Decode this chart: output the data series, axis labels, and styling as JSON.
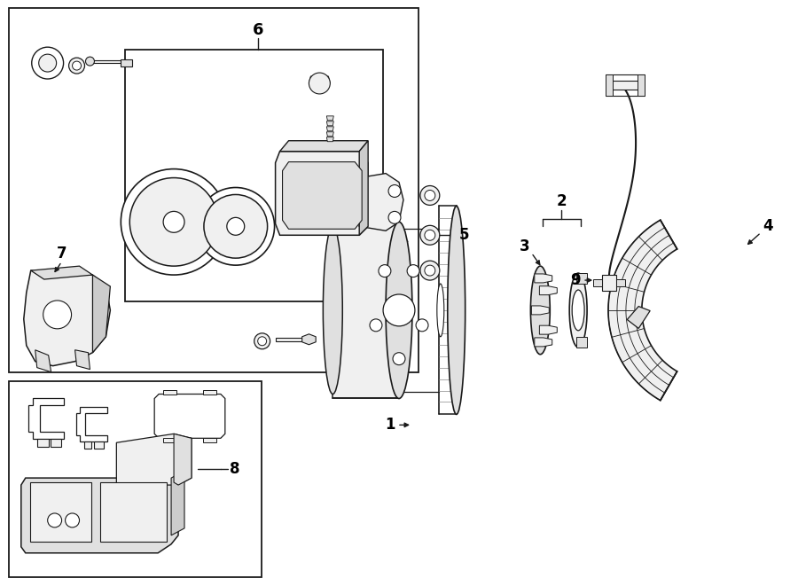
{
  "bg_color": "#ffffff",
  "lc": "#1a1a1a",
  "fig_width": 9.0,
  "fig_height": 6.61,
  "dpi": 100
}
